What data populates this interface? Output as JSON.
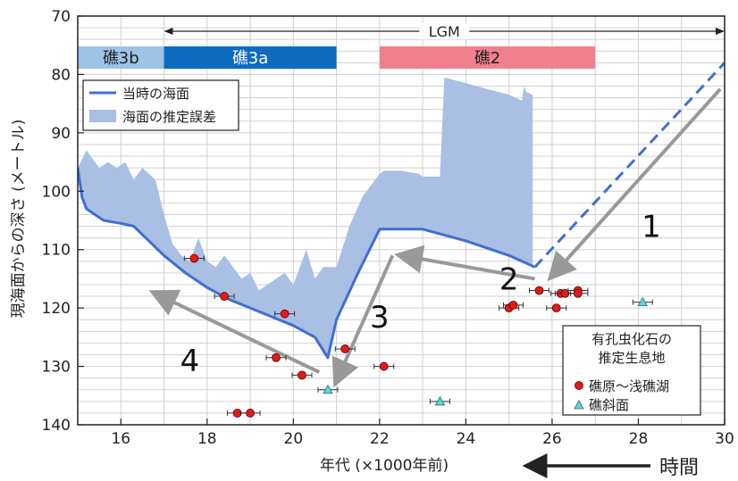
{
  "chart_data": {
    "type": "line",
    "xlabel": "年代 (×1000年前)",
    "ylabel": "現海面からの深さ (メートル)",
    "xlim": [
      15,
      30
    ],
    "ylim": [
      70,
      140
    ],
    "x_ticks": [
      16,
      18,
      20,
      22,
      24,
      26,
      28,
      30
    ],
    "y_ticks": [
      70,
      80,
      90,
      100,
      110,
      120,
      130,
      140
    ],
    "y_inverted": true,
    "grid": true,
    "time_arrow_label": "時間",
    "lgm": {
      "label": "LGM",
      "from": 17,
      "to": 30
    },
    "reef_bands": [
      {
        "label": "礁3b",
        "from": 15,
        "to": 17,
        "color": "#9dc3e6"
      },
      {
        "label": "礁3a",
        "from": 17,
        "to": 21,
        "color": "#0e6bbf"
      },
      {
        "label": "礁2",
        "from": 22,
        "to": 27,
        "color": "#f08090"
      }
    ],
    "sea_level": {
      "name": "当時の海面",
      "color": "#3f6fcf",
      "x": [
        15.0,
        15.1,
        15.2,
        15.4,
        15.6,
        16.0,
        16.3,
        17.0,
        17.5,
        18.0,
        18.5,
        19.0,
        19.5,
        20.0,
        20.5,
        20.8,
        21.0,
        21.5,
        22.0,
        22.5,
        23.0,
        24.0,
        25.0,
        25.6
      ],
      "y": [
        96,
        101,
        103,
        104,
        105,
        105.5,
        106,
        111,
        114,
        116.5,
        118.5,
        120,
        121.5,
        123,
        125,
        128.5,
        122,
        114,
        106.5,
        106.5,
        106.5,
        108.5,
        111,
        113
      ],
      "projection": {
        "x": [
          25.6,
          30.0
        ],
        "y": [
          113,
          78
        ]
      }
    },
    "uncertainty": {
      "name": "海面の推定誤差",
      "color": "#a9bfe3",
      "upper": {
        "x": [
          15.0,
          15.2,
          15.5,
          15.7,
          15.9,
          16.1,
          16.3,
          16.5,
          16.8,
          17.0,
          17.2,
          17.4,
          17.6,
          17.8,
          18.0,
          18.2,
          18.4,
          18.6,
          18.8,
          19.0,
          19.2,
          19.4,
          19.6,
          19.8,
          20.0,
          20.3,
          20.5,
          20.7,
          21.0,
          21.3,
          21.6,
          22.0,
          22.1,
          22.5,
          22.9,
          23.0,
          23.4,
          23.5,
          24.0,
          24.5,
          25.0,
          25.3,
          25.35,
          25.4,
          25.55
        ],
        "y": [
          96,
          93,
          96,
          95,
          96,
          95,
          98,
          96,
          98,
          104,
          109,
          111,
          112,
          108,
          112,
          113,
          111,
          113,
          115,
          114,
          117,
          116,
          115,
          114,
          116,
          110,
          115,
          113,
          113,
          106,
          101,
          97,
          96.5,
          96.5,
          97,
          97.5,
          97.5,
          80.5,
          81.5,
          82.5,
          83.5,
          84.5,
          82,
          83,
          83.5
        ]
      },
      "lower": {
        "x": [
          15.0,
          15.1,
          15.2,
          15.4,
          15.6,
          16.0,
          16.3,
          17.0,
          17.5,
          18.0,
          18.5,
          19.0,
          19.5,
          20.0,
          20.5,
          20.8,
          21.0,
          21.5,
          22.0,
          22.5,
          23.0,
          24.0,
          25.0,
          25.55
        ],
        "y": [
          96,
          101,
          103,
          104,
          105,
          105.5,
          106,
          111,
          114,
          116.5,
          118.5,
          120,
          121.5,
          123,
          125,
          128.5,
          122,
          114,
          106.5,
          106.5,
          106.5,
          108.5,
          111,
          113
        ]
      }
    },
    "points": {
      "legend_title": "有孔虫化石の\n推定生息地",
      "series": [
        {
          "name": "礁原〜浅礁湖",
          "marker": "circle",
          "color": "#e31a1c",
          "x": [
            17.7,
            18.4,
            18.7,
            19.0,
            19.6,
            19.8,
            20.2,
            21.2,
            22.1,
            25.0,
            25.1,
            25.7,
            26.1,
            26.2,
            26.3,
            26.6,
            26.6
          ],
          "y": [
            111.5,
            118,
            138,
            138,
            128.5,
            121,
            131.5,
            127,
            130,
            120,
            119.5,
            117,
            120,
            117.5,
            117.5,
            117,
            117.5
          ]
        },
        {
          "name": "礁斜面",
          "marker": "triangle",
          "color": "#5ed8d8",
          "x": [
            20.8,
            23.4,
            28.1
          ],
          "y": [
            134,
            136,
            119
          ]
        }
      ]
    },
    "annotations": [
      {
        "label": "1",
        "from": [
          29.9,
          82.5
        ],
        "to": [
          26.0,
          114.5
        ],
        "label_at": [
          28.3,
          106
        ]
      },
      {
        "label": "2",
        "from": [
          25.6,
          115
        ],
        "to": [
          22.5,
          111
        ],
        "label_at": [
          25.0,
          115
        ]
      },
      {
        "label": "3",
        "from": [
          22.3,
          111
        ],
        "to": [
          21.0,
          132.5
        ],
        "label_at": [
          22.0,
          121.5
        ]
      },
      {
        "label": "4",
        "from": [
          20.6,
          131
        ],
        "to": [
          16.8,
          117.5
        ],
        "label_at": [
          17.6,
          129
        ]
      }
    ],
    "legend": [
      {
        "label": "当時の海面",
        "kind": "line"
      },
      {
        "label": "海面の推定誤差",
        "kind": "area"
      }
    ]
  }
}
